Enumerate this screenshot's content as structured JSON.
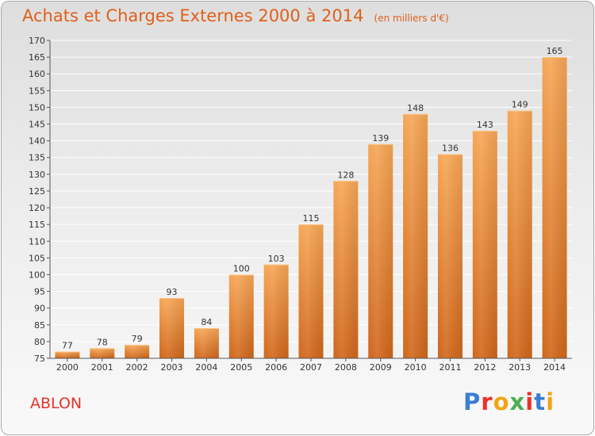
{
  "header": {
    "title": "Achats et Charges Externes 2000 à 2014",
    "unit_note": "(en milliers d'€)"
  },
  "footer": {
    "location": "ABLON",
    "brand": "Proxiti"
  },
  "colors": {
    "title": "#e0601a",
    "location": "#e8332a",
    "bar_top": "#f6a655",
    "bar_bottom": "#d0661a",
    "axis": "#555555",
    "grid": "#ffffff"
  },
  "brand_letter_colors": [
    "#3a7fd0",
    "#e8332a",
    "#f2a516",
    "#4caf50",
    "#e8332a",
    "#3a7fd0",
    "#f2a516"
  ],
  "chart_data": {
    "type": "bar",
    "title": "Achats et Charges Externes 2000 à 2014",
    "subtitle": "(en milliers d'€)",
    "categories": [
      "2000",
      "2001",
      "2002",
      "2003",
      "2004",
      "2005",
      "2006",
      "2007",
      "2008",
      "2009",
      "2010",
      "2011",
      "2012",
      "2013",
      "2014"
    ],
    "values": [
      77,
      78,
      79,
      93,
      84,
      100,
      103,
      115,
      128,
      139,
      148,
      136,
      143,
      149,
      165
    ],
    "xlabel": "",
    "ylabel": "",
    "ylim": [
      75,
      170
    ],
    "ytick_step": 5,
    "grid": true,
    "data_labels": true
  }
}
